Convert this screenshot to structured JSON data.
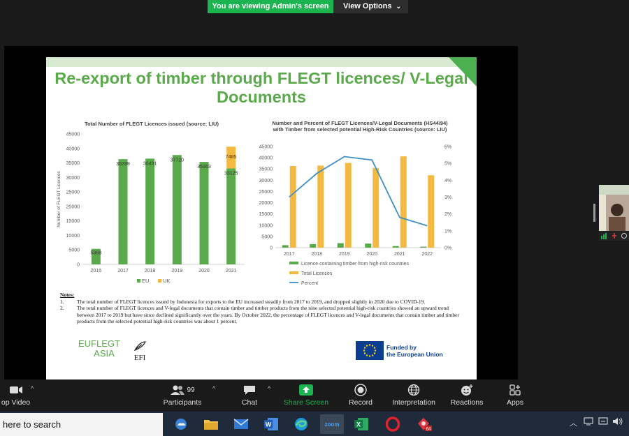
{
  "banner": {
    "viewing_text": "You are viewing Admin's screen",
    "view_options_label": "View Options"
  },
  "slide": {
    "title": "Re-export of timber through FLEGT licences/ V-Legal Documents",
    "notes_title": "Notes",
    "notes": [
      {
        "num": "1.",
        "text": "The total number of FLEGT licences issued by Indonesia for exports to the EU increased steadily from 2017 to 2019, and dropped slightly in 2020 due to COVID-19."
      },
      {
        "num": "2.",
        "text": "The total number of FLEGT licences and V-legal documents that contain timber and timber products from the nine selected potential high-risk countries showed an upward trend between 2017 to 2019 but have since declined significantly over the years. By October 2022, the percentage of FLEGT licences and V-legal documents that contain timber and timber products from the selected potential high-risk countries was about 1 percent."
      }
    ],
    "logo_euflegt_line1": "EUFLEGT",
    "logo_euflegt_line2": "ASIA",
    "logo_efi": "EFI",
    "eu_funded_line1": "Funded by",
    "eu_funded_line2": "the European Union"
  },
  "chart_data": [
    {
      "type": "bar",
      "title": "Total Number of FLEGT Licences issued (source: LIU)",
      "ylabel": "Number of FLEGT Licences",
      "xlabel": "",
      "stacked": true,
      "categories": [
        "2016",
        "2017",
        "2018",
        "2019",
        "2020",
        "2021"
      ],
      "series": [
        {
          "name": "EU",
          "color": "#5aa94a",
          "values": [
            5368,
            36289,
            36491,
            37720,
            35353,
            33125
          ]
        },
        {
          "name": "UK",
          "color": "#f4b942",
          "values": [
            0,
            0,
            0,
            0,
            0,
            7485
          ]
        }
      ],
      "data_labels": [
        "5368",
        "36289",
        "36491",
        "37720",
        "35353",
        "33125",
        "7485"
      ],
      "ylim": [
        0,
        45000
      ],
      "yticks": [
        "0",
        "5000",
        "10000",
        "15000",
        "20000",
        "25000",
        "30000",
        "35000",
        "40000",
        "45000"
      ],
      "legend": "bottom",
      "grid": false
    },
    {
      "type": "bar",
      "title": "Number and Percent of FLEGT Licences/V-Legal Documents (HS44/94) with Timber from selected potential High-Risk Countries (source: LIU)",
      "categories": [
        "2017",
        "2018",
        "2019",
        "2020",
        "2021",
        "2022"
      ],
      "series": [
        {
          "name": "Licence containing timber from high-risk countries",
          "type": "bar",
          "color": "#5aa94a",
          "values": [
            1100,
            1600,
            2000,
            1800,
            700,
            450
          ]
        },
        {
          "name": "Total Licences",
          "type": "bar",
          "color": "#f4b942",
          "values": [
            36300,
            36500,
            37700,
            35400,
            40600,
            32200
          ]
        },
        {
          "name": "Percent",
          "type": "line",
          "color": "#3d8fc4",
          "axis": "right",
          "values": [
            3.0,
            4.4,
            5.4,
            5.2,
            1.8,
            1.3
          ]
        }
      ],
      "ylim": [
        0,
        45000
      ],
      "yticks": [
        "0",
        "5000",
        "10000",
        "15000",
        "20000",
        "25000",
        "30000",
        "35000",
        "40000",
        "45000"
      ],
      "y2lim": [
        0,
        6
      ],
      "y2ticks": [
        "0%",
        "1%",
        "2%",
        "3%",
        "4%",
        "5%",
        "6%"
      ],
      "legend": "bottom",
      "grid": false
    }
  ],
  "toolbar": {
    "items": [
      {
        "key": "video",
        "label": "op Video"
      },
      {
        "key": "participants",
        "label": "Participants",
        "count": "99"
      },
      {
        "key": "chat",
        "label": "Chat"
      },
      {
        "key": "share",
        "label": "Share Screen"
      },
      {
        "key": "record",
        "label": "Record"
      },
      {
        "key": "interpretation",
        "label": "Interpretation"
      },
      {
        "key": "reactions",
        "label": "Reactions"
      },
      {
        "key": "apps",
        "label": "Apps"
      }
    ]
  },
  "taskbar": {
    "search_text": "here to search",
    "apps": [
      "weather",
      "file-explorer",
      "mail",
      "word",
      "edge",
      "zoom",
      "excel",
      "opera",
      "other"
    ],
    "active_app": "zoom",
    "zoom_label": "zoom",
    "other_badge": "64"
  },
  "colors": {
    "zoom_green": "#1cb450",
    "slide_green": "#5aa94a",
    "eu_blue": "#0b3d91"
  }
}
